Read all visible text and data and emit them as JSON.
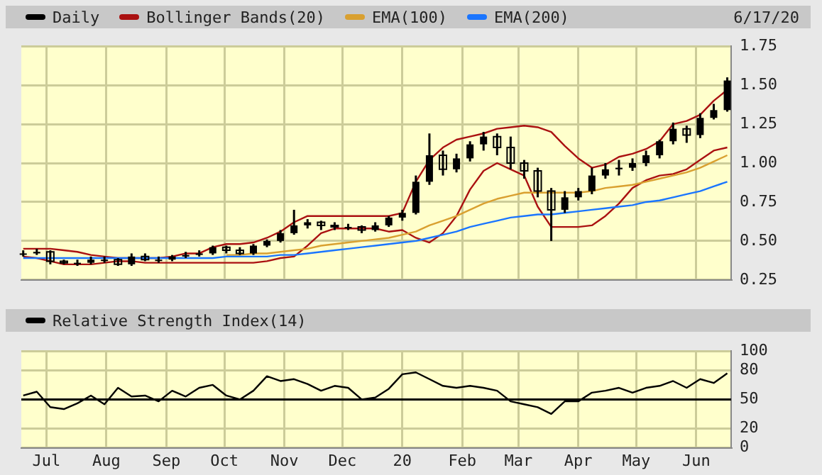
{
  "chart_data": [
    {
      "type": "candlestick",
      "title": "Daily",
      "color": "#000000",
      "legend": "top",
      "grid": true,
      "tick_labels": "y",
      "annotations": [
        "6/17/20"
      ],
      "x": [
        "2019-06-19",
        "2019-06-26",
        "2019-07-03",
        "2019-07-10",
        "2019-07-17",
        "2019-07-24",
        "2019-07-31",
        "2019-08-07",
        "2019-08-14",
        "2019-08-21",
        "2019-08-28",
        "2019-09-04",
        "2019-09-11",
        "2019-09-18",
        "2019-09-25",
        "2019-10-02",
        "2019-10-09",
        "2019-10-16",
        "2019-10-23",
        "2019-10-30",
        "2019-11-06",
        "2019-11-13",
        "2019-11-20",
        "2019-11-27",
        "2019-12-04",
        "2019-12-11",
        "2019-12-18",
        "2019-12-25",
        "2020-01-01",
        "2020-01-08",
        "2020-01-15",
        "2020-01-22",
        "2020-01-29",
        "2020-02-05",
        "2020-02-12",
        "2020-02-19",
        "2020-02-26",
        "2020-03-04",
        "2020-03-11",
        "2020-03-18",
        "2020-03-25",
        "2020-04-01",
        "2020-04-08",
        "2020-04-15",
        "2020-04-22",
        "2020-04-29",
        "2020-05-06",
        "2020-05-13",
        "2020-05-20",
        "2020-05-27",
        "2020-06-03",
        "2020-06-10",
        "2020-06-17"
      ],
      "ohlc": [
        [
          0.42,
          0.44,
          0.4,
          0.42
        ],
        [
          0.42,
          0.45,
          0.41,
          0.43
        ],
        [
          0.43,
          0.44,
          0.35,
          0.37
        ],
        [
          0.37,
          0.38,
          0.35,
          0.36
        ],
        [
          0.36,
          0.38,
          0.34,
          0.36
        ],
        [
          0.36,
          0.4,
          0.35,
          0.38
        ],
        [
          0.38,
          0.4,
          0.36,
          0.38
        ],
        [
          0.38,
          0.39,
          0.34,
          0.35
        ],
        [
          0.35,
          0.42,
          0.34,
          0.4
        ],
        [
          0.4,
          0.42,
          0.37,
          0.38
        ],
        [
          0.38,
          0.4,
          0.36,
          0.38
        ],
        [
          0.38,
          0.41,
          0.37,
          0.4
        ],
        [
          0.4,
          0.43,
          0.39,
          0.41
        ],
        [
          0.41,
          0.44,
          0.4,
          0.42
        ],
        [
          0.42,
          0.47,
          0.41,
          0.46
        ],
        [
          0.46,
          0.47,
          0.42,
          0.44
        ],
        [
          0.44,
          0.46,
          0.41,
          0.42
        ],
        [
          0.42,
          0.48,
          0.41,
          0.47
        ],
        [
          0.47,
          0.51,
          0.46,
          0.5
        ],
        [
          0.5,
          0.57,
          0.49,
          0.55
        ],
        [
          0.55,
          0.7,
          0.54,
          0.6
        ],
        [
          0.6,
          0.64,
          0.58,
          0.62
        ],
        [
          0.62,
          0.63,
          0.57,
          0.6
        ],
        [
          0.6,
          0.62,
          0.57,
          0.59
        ],
        [
          0.59,
          0.61,
          0.57,
          0.59
        ],
        [
          0.59,
          0.6,
          0.55,
          0.57
        ],
        [
          0.57,
          0.62,
          0.56,
          0.6
        ],
        [
          0.6,
          0.66,
          0.59,
          0.65
        ],
        [
          0.65,
          0.7,
          0.63,
          0.68
        ],
        [
          0.68,
          0.92,
          0.67,
          0.88
        ],
        [
          0.88,
          1.19,
          0.86,
          1.05
        ],
        [
          1.05,
          1.08,
          0.92,
          0.96
        ],
        [
          0.96,
          1.06,
          0.94,
          1.03
        ],
        [
          1.03,
          1.14,
          1.01,
          1.12
        ],
        [
          1.12,
          1.2,
          1.08,
          1.17
        ],
        [
          1.17,
          1.19,
          1.05,
          1.1
        ],
        [
          1.1,
          1.17,
          0.96,
          1.0
        ],
        [
          1.0,
          1.02,
          0.9,
          0.95
        ],
        [
          0.95,
          0.97,
          0.78,
          0.82
        ],
        [
          0.82,
          0.84,
          0.5,
          0.7
        ],
        [
          0.7,
          0.82,
          0.68,
          0.78
        ],
        [
          0.78,
          0.84,
          0.76,
          0.82
        ],
        [
          0.82,
          0.97,
          0.8,
          0.92
        ],
        [
          0.92,
          1.0,
          0.9,
          0.96
        ],
        [
          0.96,
          1.02,
          0.92,
          0.97
        ],
        [
          0.97,
          1.03,
          0.95,
          1.0
        ],
        [
          1.0,
          1.08,
          0.98,
          1.05
        ],
        [
          1.05,
          1.15,
          1.03,
          1.14
        ],
        [
          1.14,
          1.26,
          1.12,
          1.22
        ],
        [
          1.22,
          1.24,
          1.13,
          1.18
        ],
        [
          1.18,
          1.32,
          1.16,
          1.29
        ],
        [
          1.29,
          1.38,
          1.28,
          1.34
        ],
        [
          1.34,
          1.55,
          1.33,
          1.53
        ]
      ],
      "series": [
        {
          "name": "Bollinger Bands(20)",
          "type": "line",
          "color": "#aa1111",
          "values": [
            0.45,
            0.45,
            0.45,
            0.44,
            0.43,
            0.41,
            0.4,
            0.39,
            0.39,
            0.39,
            0.39,
            0.4,
            0.42,
            0.42,
            0.46,
            0.48,
            0.48,
            0.49,
            0.52,
            0.56,
            0.62,
            0.66,
            0.66,
            0.66,
            0.66,
            0.66,
            0.66,
            0.66,
            0.68,
            0.88,
            1.02,
            1.1,
            1.15,
            1.17,
            1.19,
            1.22,
            1.23,
            1.24,
            1.23,
            1.2,
            1.11,
            1.03,
            0.97,
            0.99,
            1.04,
            1.06,
            1.09,
            1.14,
            1.25,
            1.27,
            1.31,
            1.4,
            1.47
          ]
        },
        {
          "type": "line",
          "color": "#aa1111",
          "values": [
            0.4,
            0.39,
            0.37,
            0.35,
            0.35,
            0.35,
            0.36,
            0.37,
            0.37,
            0.36,
            0.36,
            0.36,
            0.36,
            0.36,
            0.36,
            0.36,
            0.36,
            0.36,
            0.37,
            0.39,
            0.4,
            0.47,
            0.55,
            0.58,
            0.58,
            0.58,
            0.58,
            0.56,
            0.57,
            0.52,
            0.49,
            0.55,
            0.66,
            0.83,
            0.95,
            1.0,
            0.96,
            0.92,
            0.72,
            0.59,
            0.59,
            0.59,
            0.6,
            0.66,
            0.74,
            0.84,
            0.89,
            0.92,
            0.93,
            0.96,
            1.02,
            1.08,
            1.1
          ]
        },
        {
          "name": "EMA(100)",
          "type": "line",
          "color": "#d9a030",
          "values": [
            null,
            null,
            null,
            null,
            null,
            null,
            null,
            null,
            null,
            null,
            null,
            null,
            null,
            null,
            null,
            0.41,
            0.41,
            0.42,
            0.42,
            0.43,
            0.44,
            0.45,
            0.47,
            0.48,
            0.49,
            0.5,
            0.51,
            0.52,
            0.54,
            0.56,
            0.6,
            0.63,
            0.66,
            0.7,
            0.74,
            0.77,
            0.79,
            0.81,
            0.81,
            0.81,
            0.81,
            0.81,
            0.82,
            0.84,
            0.85,
            0.86,
            0.88,
            0.9,
            0.92,
            0.94,
            0.97,
            1.01,
            1.05
          ]
        },
        {
          "name": "EMA(200)",
          "type": "line",
          "color": "#1a75ff",
          "values": [
            0.39,
            0.39,
            0.39,
            0.39,
            0.39,
            0.39,
            0.39,
            0.39,
            0.39,
            0.39,
            0.39,
            0.39,
            0.39,
            0.39,
            0.39,
            0.4,
            0.4,
            0.4,
            0.4,
            0.41,
            0.41,
            0.42,
            0.43,
            0.44,
            0.45,
            0.46,
            0.47,
            0.48,
            0.49,
            0.5,
            0.52,
            0.54,
            0.56,
            0.59,
            0.61,
            0.63,
            0.65,
            0.66,
            0.67,
            0.67,
            0.68,
            0.69,
            0.7,
            0.71,
            0.72,
            0.73,
            0.75,
            0.76,
            0.78,
            0.8,
            0.82,
            0.85,
            0.88
          ]
        }
      ],
      "xlim": [
        "2019-06-18",
        "2020-06-19"
      ],
      "xticks": [
        {
          "value": "2019-07-01",
          "label": null
        },
        {
          "value": "2019-08-01",
          "label": null
        },
        {
          "value": "2019-09-01",
          "label": null
        },
        {
          "value": "2019-10-01",
          "label": null
        },
        {
          "value": "2019-11-01",
          "label": null
        },
        {
          "value": "2019-12-01",
          "label": null
        },
        {
          "value": "2020-01-01",
          "label": null
        },
        {
          "value": "2020-02-01",
          "label": null
        },
        {
          "value": "2020-03-01",
          "label": null
        },
        {
          "value": "2020-04-01",
          "label": null
        },
        {
          "value": "2020-05-01",
          "label": null
        },
        {
          "value": "2020-06-01",
          "label": null
        }
      ],
      "ylim": [
        0.25,
        1.75
      ],
      "yticks": [
        {
          "value": 0.25,
          "label": "0.25"
        },
        {
          "value": 0.5,
          "label": "0.50"
        },
        {
          "value": 0.75,
          "label": "0.75"
        },
        {
          "value": 1,
          "label": "1.00"
        },
        {
          "value": 1.25,
          "label": "1.25"
        },
        {
          "value": 1.5,
          "label": "1.50"
        },
        {
          "value": 1.75,
          "label": "1.75"
        }
      ]
    },
    {
      "type": "line",
      "legend": "top",
      "grid": true,
      "x": [
        "2019-06-19",
        "2019-06-26",
        "2019-07-03",
        "2019-07-10",
        "2019-07-17",
        "2019-07-24",
        "2019-07-31",
        "2019-08-07",
        "2019-08-14",
        "2019-08-21",
        "2019-08-28",
        "2019-09-04",
        "2019-09-11",
        "2019-09-18",
        "2019-09-25",
        "2019-10-02",
        "2019-10-09",
        "2019-10-16",
        "2019-10-23",
        "2019-10-30",
        "2019-11-06",
        "2019-11-13",
        "2019-11-20",
        "2019-11-27",
        "2019-12-04",
        "2019-12-11",
        "2019-12-18",
        "2019-12-25",
        "2020-01-01",
        "2020-01-08",
        "2020-01-15",
        "2020-01-22",
        "2020-01-29",
        "2020-02-05",
        "2020-02-12",
        "2020-02-19",
        "2020-02-26",
        "2020-03-04",
        "2020-03-11",
        "2020-03-18",
        "2020-03-25",
        "2020-04-01",
        "2020-04-08",
        "2020-04-15",
        "2020-04-22",
        "2020-04-29",
        "2020-05-06",
        "2020-05-13",
        "2020-05-20",
        "2020-05-27",
        "2020-06-03",
        "2020-06-10",
        "2020-06-17"
      ],
      "series": [
        {
          "name": "Relative Strength Index(14)",
          "color": "#000000",
          "values": [
            54,
            58,
            42,
            40,
            46,
            54,
            45,
            62,
            53,
            54,
            48,
            59,
            53,
            62,
            65,
            54,
            50,
            59,
            74,
            69,
            71,
            66,
            59,
            64,
            62,
            50,
            52,
            61,
            76,
            78,
            71,
            64,
            62,
            64,
            62,
            59,
            48,
            45,
            42,
            35,
            48,
            48,
            57,
            59,
            62,
            57,
            62,
            64,
            69,
            62,
            71,
            67,
            77
          ]
        }
      ],
      "ref_lines": [
        {
          "axis": "y",
          "value": 50,
          "color": "#000000"
        }
      ],
      "xlim": [
        "2019-06-18",
        "2020-06-19"
      ],
      "xticks": [
        {
          "value": "2019-07-01",
          "label": "Jul"
        },
        {
          "value": "2019-08-01",
          "label": "Aug"
        },
        {
          "value": "2019-09-01",
          "label": "Sep"
        },
        {
          "value": "2019-10-01",
          "label": "Oct"
        },
        {
          "value": "2019-11-01",
          "label": "Nov"
        },
        {
          "value": "2019-12-01",
          "label": "Dec"
        },
        {
          "value": "2020-01-01",
          "label": "20"
        },
        {
          "value": "2020-02-01",
          "label": "Feb"
        },
        {
          "value": "2020-03-01",
          "label": "Mar"
        },
        {
          "value": "2020-04-01",
          "label": "Apr"
        },
        {
          "value": "2020-05-01",
          "label": "May"
        },
        {
          "value": "2020-06-01",
          "label": "Jun"
        }
      ],
      "ylim": [
        0,
        100
      ],
      "yticks": [
        0,
        20,
        50,
        80,
        100
      ]
    }
  ]
}
